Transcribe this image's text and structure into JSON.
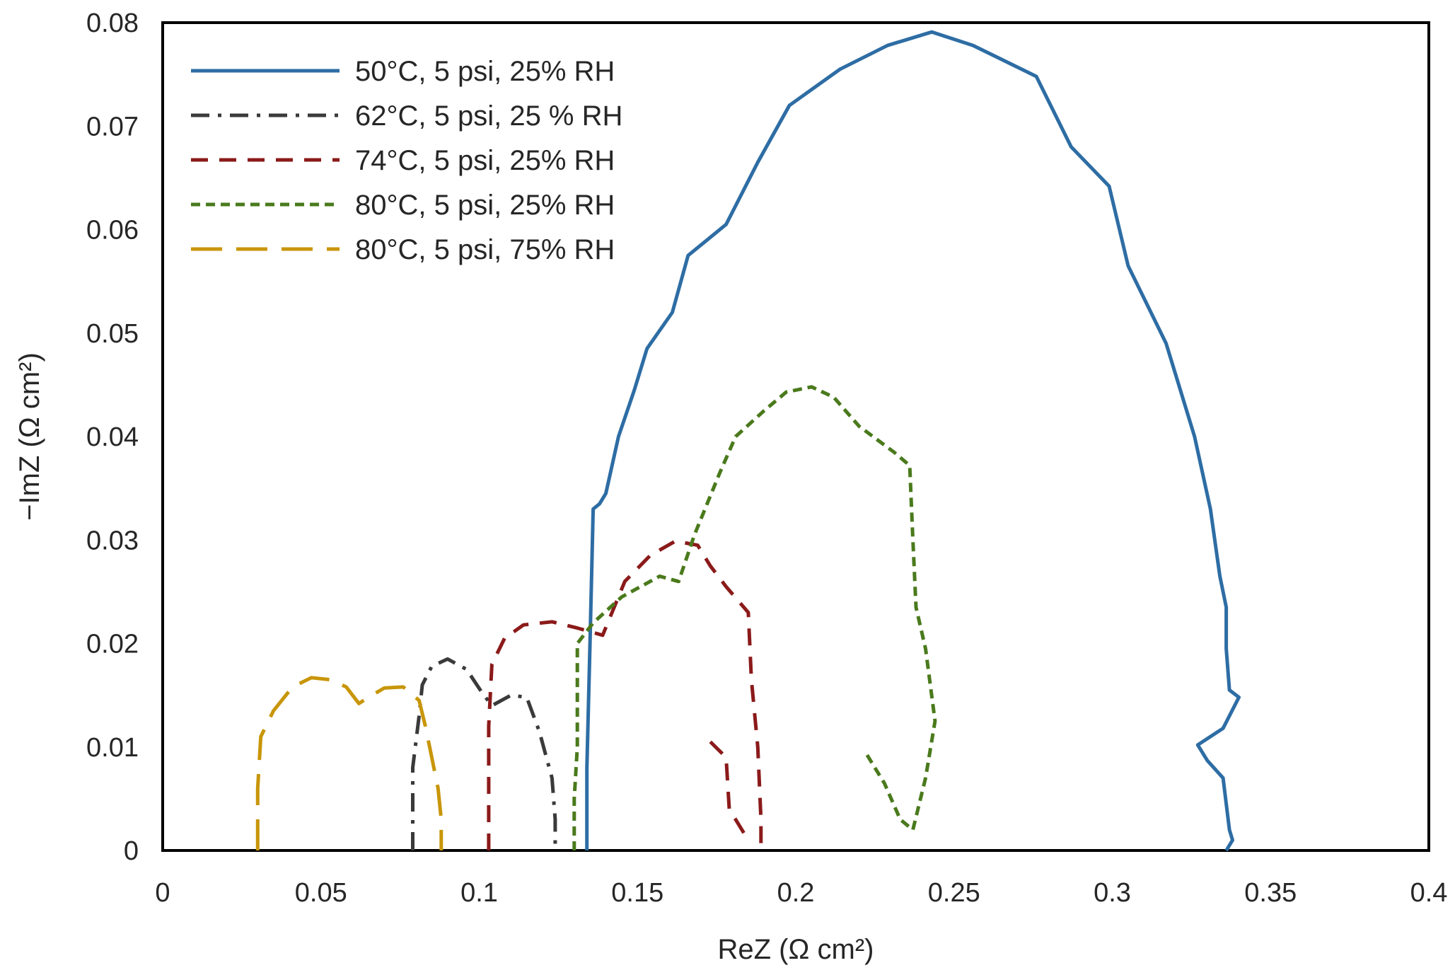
{
  "chart_data": {
    "type": "line",
    "title": "",
    "xlabel": "ReZ (Ω cm²)",
    "ylabel": "−ImZ (Ω cm²)",
    "xlim": [
      0,
      0.4
    ],
    "ylim": [
      0,
      0.08
    ],
    "xticks": [
      "0",
      "0.05",
      "0.1",
      "0.15",
      "0.2",
      "0.25",
      "0.3",
      "0.35",
      "0.4"
    ],
    "yticks": [
      "0",
      "0.01",
      "0.02",
      "0.03",
      "0.04",
      "0.05",
      "0.06",
      "0.07",
      "0.08"
    ],
    "grid": false,
    "legend_position": "top-left",
    "series": [
      {
        "name": "50°C, 5 psi, 25% RH",
        "color": "#2e6da4",
        "dash": "solid",
        "points": [
          [
            0.134,
            0.0
          ],
          [
            0.134,
            0.008
          ],
          [
            0.135,
            0.02
          ],
          [
            0.136,
            0.033
          ],
          [
            0.138,
            0.0335
          ],
          [
            0.14,
            0.0345
          ],
          [
            0.144,
            0.04
          ],
          [
            0.149,
            0.0445
          ],
          [
            0.153,
            0.0485
          ],
          [
            0.161,
            0.052
          ],
          [
            0.166,
            0.0575
          ],
          [
            0.178,
            0.0605
          ],
          [
            0.188,
            0.0665
          ],
          [
            0.198,
            0.072
          ],
          [
            0.214,
            0.0755
          ],
          [
            0.229,
            0.0778
          ],
          [
            0.243,
            0.0791
          ],
          [
            0.256,
            0.0778
          ],
          [
            0.276,
            0.0748
          ],
          [
            0.287,
            0.068
          ],
          [
            0.299,
            0.0642
          ],
          [
            0.305,
            0.0565
          ],
          [
            0.317,
            0.049
          ],
          [
            0.326,
            0.04
          ],
          [
            0.331,
            0.033
          ],
          [
            0.334,
            0.0265
          ],
          [
            0.336,
            0.0235
          ],
          [
            0.336,
            0.0195
          ],
          [
            0.337,
            0.0155
          ],
          [
            0.34,
            0.0148
          ],
          [
            0.335,
            0.0118
          ],
          [
            0.327,
            0.0102
          ],
          [
            0.33,
            0.0087
          ],
          [
            0.335,
            0.007
          ],
          [
            0.337,
            0.002
          ],
          [
            0.338,
            0.001
          ],
          [
            0.336,
            0.0
          ]
        ]
      },
      {
        "name": "62°C, 5 psi, 25 % RH",
        "color": "#3a3a3a",
        "dash": "dashdot",
        "points": [
          [
            0.079,
            0.0
          ],
          [
            0.079,
            0.004
          ],
          [
            0.079,
            0.008
          ],
          [
            0.081,
            0.013
          ],
          [
            0.082,
            0.016
          ],
          [
            0.085,
            0.0178
          ],
          [
            0.09,
            0.0185
          ],
          [
            0.096,
            0.0175
          ],
          [
            0.101,
            0.0152
          ],
          [
            0.104,
            0.014
          ],
          [
            0.11,
            0.015
          ],
          [
            0.115,
            0.0148
          ],
          [
            0.119,
            0.0115
          ],
          [
            0.123,
            0.007
          ],
          [
            0.124,
            0.003
          ],
          [
            0.124,
            0.0
          ]
        ]
      },
      {
        "name": "74°C, 5 psi, 25% RH",
        "color": "#8b1a1a",
        "dash": "dash",
        "points": [
          [
            0.103,
            0.0
          ],
          [
            0.103,
            0.006
          ],
          [
            0.103,
            0.012
          ],
          [
            0.104,
            0.018
          ],
          [
            0.108,
            0.0205
          ],
          [
            0.114,
            0.0218
          ],
          [
            0.123,
            0.0221
          ],
          [
            0.131,
            0.0215
          ],
          [
            0.139,
            0.0208
          ],
          [
            0.146,
            0.026
          ],
          [
            0.154,
            0.0285
          ],
          [
            0.162,
            0.0299
          ],
          [
            0.169,
            0.0295
          ],
          [
            0.173,
            0.0275
          ],
          [
            0.178,
            0.0255
          ],
          [
            0.185,
            0.023
          ],
          [
            0.186,
            0.0165
          ],
          [
            0.188,
            0.01
          ],
          [
            0.189,
            0.003
          ],
          [
            0.189,
            0.0
          ],
          null,
          [
            0.173,
            0.0105
          ],
          [
            0.178,
            0.009
          ],
          [
            0.179,
            0.004
          ],
          [
            0.184,
            0.0015
          ],
          [
            0.186,
            0.001
          ]
        ]
      },
      {
        "name": "80°C, 5 psi, 25% RH",
        "color": "#4a7a1c",
        "dash": "shortdash",
        "points": [
          [
            0.13,
            0.0
          ],
          [
            0.13,
            0.005
          ],
          [
            0.131,
            0.01
          ],
          [
            0.131,
            0.02
          ],
          [
            0.136,
            0.022
          ],
          [
            0.145,
            0.0245
          ],
          [
            0.157,
            0.0265
          ],
          [
            0.163,
            0.026
          ],
          [
            0.168,
            0.0305
          ],
          [
            0.176,
            0.0365
          ],
          [
            0.181,
            0.04
          ],
          [
            0.19,
            0.0425
          ],
          [
            0.197,
            0.0443
          ],
          [
            0.205,
            0.0448
          ],
          [
            0.212,
            0.0438
          ],
          [
            0.22,
            0.041
          ],
          [
            0.231,
            0.0385
          ],
          [
            0.236,
            0.0372
          ],
          [
            0.237,
            0.03
          ],
          [
            0.238,
            0.0235
          ],
          [
            0.241,
            0.0195
          ],
          [
            0.244,
            0.0125
          ],
          [
            0.241,
            0.007
          ],
          [
            0.237,
            0.002
          ],
          [
            0.233,
            0.003
          ],
          [
            0.228,
            0.0065
          ],
          [
            0.222,
            0.0095
          ]
        ]
      },
      {
        "name": "80°C, 5 psi, 75% RH",
        "color": "#c8960a",
        "dash": "longdash",
        "points": [
          [
            0.03,
            0.0
          ],
          [
            0.03,
            0.006
          ],
          [
            0.031,
            0.011
          ],
          [
            0.035,
            0.0135
          ],
          [
            0.041,
            0.0158
          ],
          [
            0.047,
            0.0167
          ],
          [
            0.053,
            0.0165
          ],
          [
            0.058,
            0.0158
          ],
          [
            0.062,
            0.0142
          ],
          [
            0.065,
            0.0148
          ],
          [
            0.07,
            0.0157
          ],
          [
            0.076,
            0.0158
          ],
          [
            0.081,
            0.0145
          ],
          [
            0.083,
            0.012
          ],
          [
            0.085,
            0.009
          ],
          [
            0.087,
            0.006
          ],
          [
            0.088,
            0.003
          ],
          [
            0.088,
            0.0
          ]
        ]
      }
    ]
  }
}
